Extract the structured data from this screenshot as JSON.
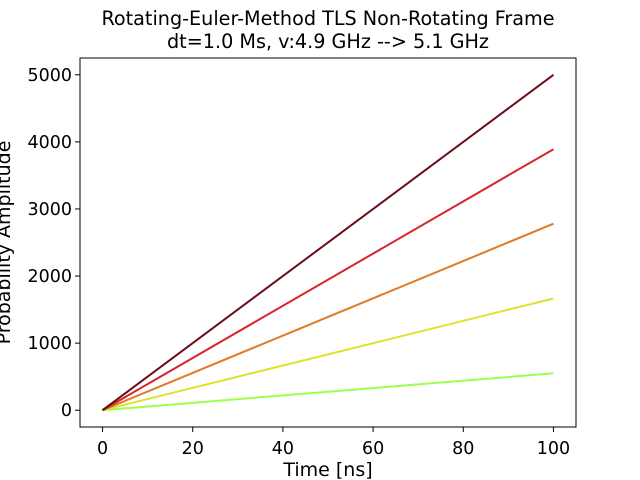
{
  "chart_data": {
    "type": "line",
    "title": "Rotating-Euler-Method TLS Non-Rotating Frame",
    "subtitle": "dt=1.0 Ms, v:4.9 GHz --> 5.1 GHz",
    "xlabel": "Time [ns]",
    "ylabel": "Probability Amplitude",
    "xlim": [
      -5,
      105
    ],
    "ylim": [
      -250,
      5250
    ],
    "xticks": [
      0,
      20,
      40,
      60,
      80,
      100
    ],
    "yticks": [
      0,
      1000,
      2000,
      3000,
      4000,
      5000
    ],
    "grid": false,
    "series": [
      {
        "color": "#9cff4a",
        "x": [
          0,
          100
        ],
        "values": [
          0,
          550
        ]
      },
      {
        "color": "#dde22a",
        "x": [
          0,
          100
        ],
        "values": [
          0,
          1665
        ]
      },
      {
        "color": "#e07a24",
        "x": [
          0,
          100
        ],
        "values": [
          0,
          2780
        ]
      },
      {
        "color": "#d8222e",
        "x": [
          0,
          100
        ],
        "values": [
          0,
          3890
        ]
      },
      {
        "color": "#6b0d18",
        "x": [
          0,
          100
        ],
        "values": [
          0,
          5000
        ]
      }
    ]
  }
}
